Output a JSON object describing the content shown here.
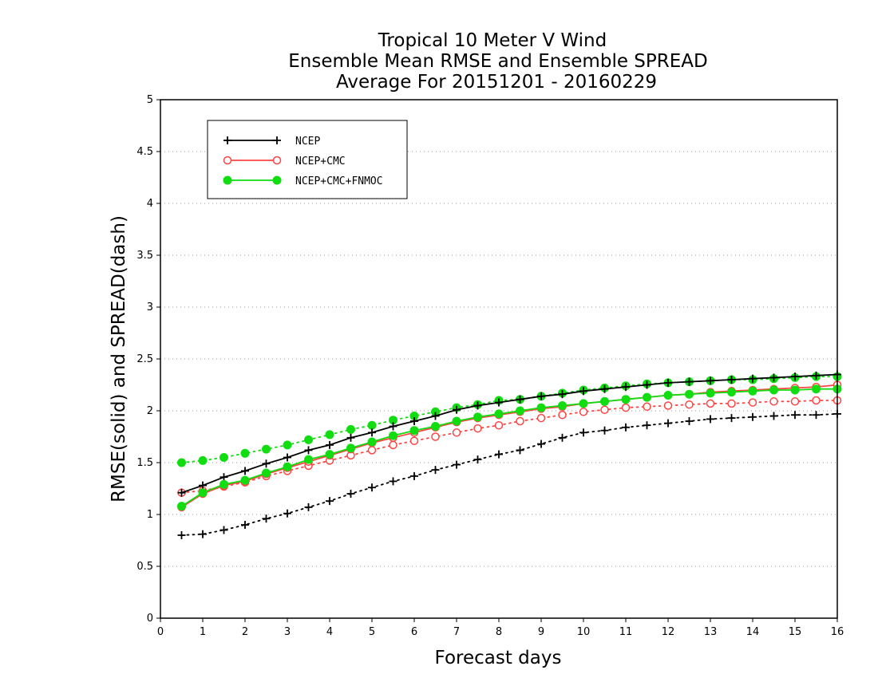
{
  "chart_data": {
    "type": "line",
    "title": [
      "Tropical 10 Meter V Wind",
      "Ensemble Mean RMSE and Ensemble SPREAD",
      "Average For 20151201 - 20160229"
    ],
    "xlabel": "Forecast days",
    "ylabel": "RMSE(solid) and SPREAD(dash)",
    "xlim": [
      0,
      16
    ],
    "ylim": [
      0,
      5
    ],
    "xticks": [
      "0",
      "1",
      "2",
      "3",
      "4",
      "5",
      "6",
      "7",
      "8",
      "9",
      "10",
      "11",
      "12",
      "13",
      "14",
      "15",
      "16"
    ],
    "yticks": [
      "0",
      "0.5",
      "1",
      "1.5",
      "2",
      "2.5",
      "3",
      "3.5",
      "4",
      "4.5",
      "5"
    ],
    "grid": "horizontal dotted",
    "legend_position": "top-left",
    "x": [
      0.5,
      1,
      1.5,
      2,
      2.5,
      3,
      3.5,
      4,
      4.5,
      5,
      5.5,
      6,
      6.5,
      7,
      7.5,
      8,
      8.5,
      9,
      9.5,
      10,
      10.5,
      11,
      11.5,
      12,
      12.5,
      13,
      13.5,
      14,
      14.5,
      15,
      15.5,
      16
    ],
    "series": [
      {
        "name": "NCEP",
        "color": "#000000",
        "marker": "plus",
        "rmse": [
          1.21,
          1.28,
          1.36,
          1.42,
          1.49,
          1.55,
          1.62,
          1.67,
          1.74,
          1.79,
          1.85,
          1.9,
          1.95,
          2.01,
          2.05,
          2.08,
          2.11,
          2.14,
          2.16,
          2.19,
          2.21,
          2.23,
          2.25,
          2.27,
          2.28,
          2.29,
          2.3,
          2.31,
          2.32,
          2.33,
          2.34,
          2.35
        ],
        "spread": [
          0.8,
          0.81,
          0.85,
          0.9,
          0.96,
          1.01,
          1.07,
          1.13,
          1.2,
          1.26,
          1.32,
          1.37,
          1.43,
          1.48,
          1.53,
          1.58,
          1.62,
          1.68,
          1.74,
          1.79,
          1.81,
          1.84,
          1.86,
          1.88,
          1.9,
          1.92,
          1.93,
          1.94,
          1.95,
          1.96,
          1.96,
          1.97
        ]
      },
      {
        "name": "NCEP+CMC",
        "color": "#ff4444",
        "marker": "open-circle",
        "rmse": [
          1.07,
          1.2,
          1.28,
          1.32,
          1.39,
          1.45,
          1.51,
          1.57,
          1.63,
          1.69,
          1.74,
          1.79,
          1.84,
          1.89,
          1.93,
          1.96,
          1.99,
          2.02,
          2.04,
          2.07,
          2.09,
          2.11,
          2.13,
          2.15,
          2.16,
          2.18,
          2.19,
          2.2,
          2.21,
          2.22,
          2.23,
          2.25
        ],
        "spread": [
          1.21,
          1.23,
          1.27,
          1.31,
          1.37,
          1.42,
          1.47,
          1.52,
          1.57,
          1.62,
          1.67,
          1.71,
          1.75,
          1.79,
          1.83,
          1.86,
          1.9,
          1.93,
          1.96,
          1.99,
          2.01,
          2.03,
          2.04,
          2.05,
          2.06,
          2.07,
          2.07,
          2.08,
          2.09,
          2.09,
          2.1,
          2.1
        ]
      },
      {
        "name": "NCEP+CMC+FNMOC",
        "color": "#11dd11",
        "marker": "filled-circle",
        "rmse": [
          1.08,
          1.21,
          1.29,
          1.33,
          1.4,
          1.46,
          1.53,
          1.58,
          1.64,
          1.7,
          1.76,
          1.81,
          1.85,
          1.9,
          1.94,
          1.97,
          2.0,
          2.03,
          2.05,
          2.07,
          2.09,
          2.11,
          2.13,
          2.15,
          2.16,
          2.17,
          2.18,
          2.19,
          2.2,
          2.2,
          2.21,
          2.21
        ],
        "spread": [
          1.5,
          1.52,
          1.55,
          1.59,
          1.63,
          1.67,
          1.72,
          1.77,
          1.82,
          1.86,
          1.91,
          1.95,
          1.99,
          2.03,
          2.06,
          2.1,
          2.11,
          2.14,
          2.17,
          2.2,
          2.22,
          2.24,
          2.26,
          2.27,
          2.28,
          2.29,
          2.3,
          2.3,
          2.31,
          2.32,
          2.33,
          2.33
        ]
      }
    ]
  }
}
